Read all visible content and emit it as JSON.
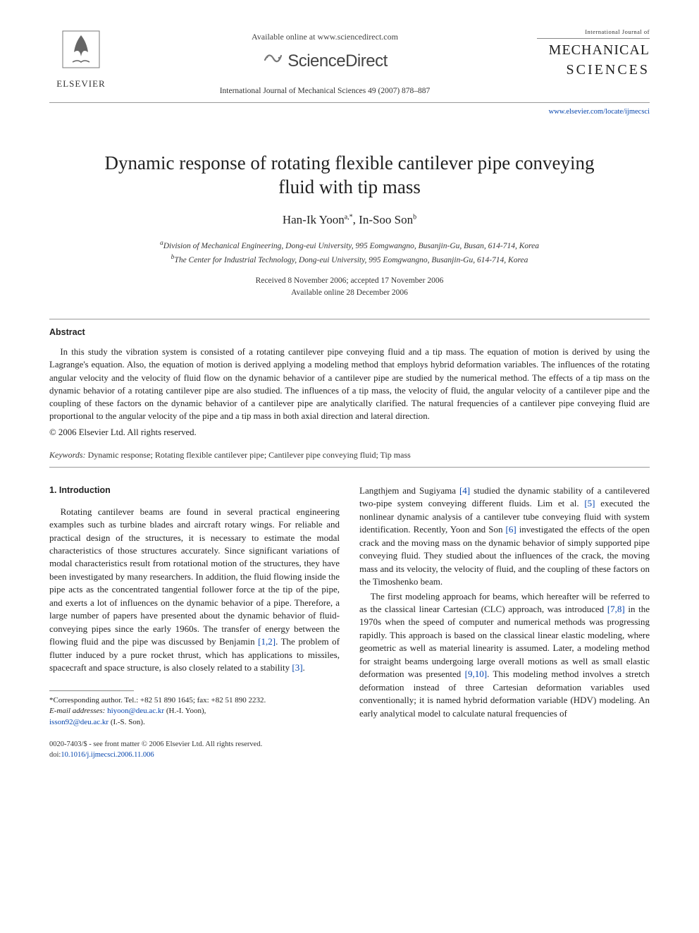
{
  "header": {
    "elsevier_label": "ELSEVIER",
    "available_online": "Available online at www.sciencedirect.com",
    "sd_brand": "ScienceDirect",
    "journal_ref": "International Journal of Mechanical Sciences 49 (2007) 878–887",
    "journal_top": "International Journal of",
    "journal_mech": "MECHANICAL",
    "journal_sci": "SCIENCES",
    "journal_url": "www.elsevier.com/locate/ijmecsci"
  },
  "title": "Dynamic response of rotating flexible cantilever pipe conveying fluid with tip mass",
  "authors_html": "Han-Ik Yoon<sup>a,*</sup>, In-Soo Son<sup>b</sup>",
  "affiliations": {
    "a": "Division of Mechanical Engineering, Dong-eui University, 995 Eomgwangno, Busanjin-Gu, Busan, 614-714, Korea",
    "b": "The Center for Industrial Technology, Dong-eui University, 995 Eomgwangno, Busanjin-Gu, 614-714, Korea"
  },
  "dates": {
    "received_accepted": "Received 8 November 2006; accepted 17 November 2006",
    "online": "Available online 28 December 2006"
  },
  "abstract": {
    "heading": "Abstract",
    "body": "In this study the vibration system is consisted of a rotating cantilever pipe conveying fluid and a tip mass. The equation of motion is derived by using the Lagrange's equation. Also, the equation of motion is derived applying a modeling method that employs hybrid deformation variables. The influences of the rotating angular velocity and the velocity of fluid flow on the dynamic behavior of a cantilever pipe are studied by the numerical method. The effects of a tip mass on the dynamic behavior of a rotating cantilever pipe are also studied. The influences of a tip mass, the velocity of fluid, the angular velocity of a cantilever pipe and the coupling of these factors on the dynamic behavior of a cantilever pipe are analytically clarified. The natural frequencies of a cantilever pipe conveying fluid are proportional to the angular velocity of the pipe and a tip mass in both axial direction and lateral direction.",
    "copyright": "© 2006 Elsevier Ltd. All rights reserved."
  },
  "keywords": {
    "label": "Keywords:",
    "text": " Dynamic response; Rotating flexible cantilever pipe; Cantilever pipe conveying fluid; Tip mass"
  },
  "intro": {
    "heading": "1. Introduction",
    "left_p1a": "Rotating cantilever beams are found in several practical engineering examples such as turbine blades and aircraft rotary wings. For reliable and practical design of the structures, it is necessary to estimate the modal characteristics of those structures accurately. Since significant variations of modal characteristics result from rotational motion of the structures, they have been investigated by many researchers. In addition, the fluid flowing inside the pipe acts as the concentrated tangential follower force at the tip of the pipe, and exerts a lot of influences on the dynamic behavior of a pipe. Therefore, a large number of papers have presented about the dynamic behavior of fluid-conveying pipes since the early 1960s. The transfer of energy between the flowing fluid and the pipe was discussed by Benjamin ",
    "ref12": "[1,2]",
    "left_p1b": ". The problem of flutter induced by a pure rocket thrust, which has applications to missiles, spacecraft and space structure, is also closely related to a stability ",
    "ref3": "[3]",
    "left_p1c": ".",
    "right_p1a": "Langthjem and Sugiyama ",
    "ref4": "[4]",
    "right_p1b": " studied the dynamic stability of a cantilevered two-pipe system conveying different fluids. Lim et al. ",
    "ref5": "[5]",
    "right_p1c": " executed the nonlinear dynamic analysis of a cantilever tube conveying fluid with system identification. Recently, Yoon and Son ",
    "ref6": "[6]",
    "right_p1d": " investigated the effects of the open crack and the moving mass on the dynamic behavior of simply supported pipe conveying fluid. They studied about the influences of the crack, the moving mass and its velocity, the velocity of fluid, and the coupling of these factors on the Timoshenko beam.",
    "right_p2a": "The first modeling approach for beams, which hereafter will be referred to as the classical linear Cartesian (CLC) approach, was introduced ",
    "ref78": "[7,8]",
    "right_p2b": " in the 1970s when the speed of computer and numerical methods was progressing rapidly. This approach is based on the classical linear elastic modeling, where geometric as well as material linearity is assumed. Later, a modeling method for straight beams undergoing large overall motions as well as small elastic deformation was presented ",
    "ref910": "[9,10]",
    "right_p2c": ". This modeling method involves a stretch deformation instead of three Cartesian deformation variables used conventionally; it is named hybrid deformation variable (HDV) modeling. An early analytical model to calculate natural frequencies of"
  },
  "footnotes": {
    "corresponding": "*Corresponding author. Tel.: +82 51 890 1645; fax: +82 51 890 2232.",
    "email_label": "E-mail addresses:",
    "email1": "hiyoon@deu.ac.kr",
    "name1": " (H.-I. Yoon),",
    "email2": "isson92@deu.ac.kr",
    "name2": " (I.-S. Son)."
  },
  "footer": {
    "line1": "0020-7403/$ - see front matter © 2006 Elsevier Ltd. All rights reserved.",
    "doi_label": "doi:",
    "doi": "10.1016/j.ijmecsci.2006.11.006"
  },
  "colors": {
    "link": "#0645ad",
    "text": "#222222",
    "rule": "#999999",
    "bg": "#ffffff"
  }
}
